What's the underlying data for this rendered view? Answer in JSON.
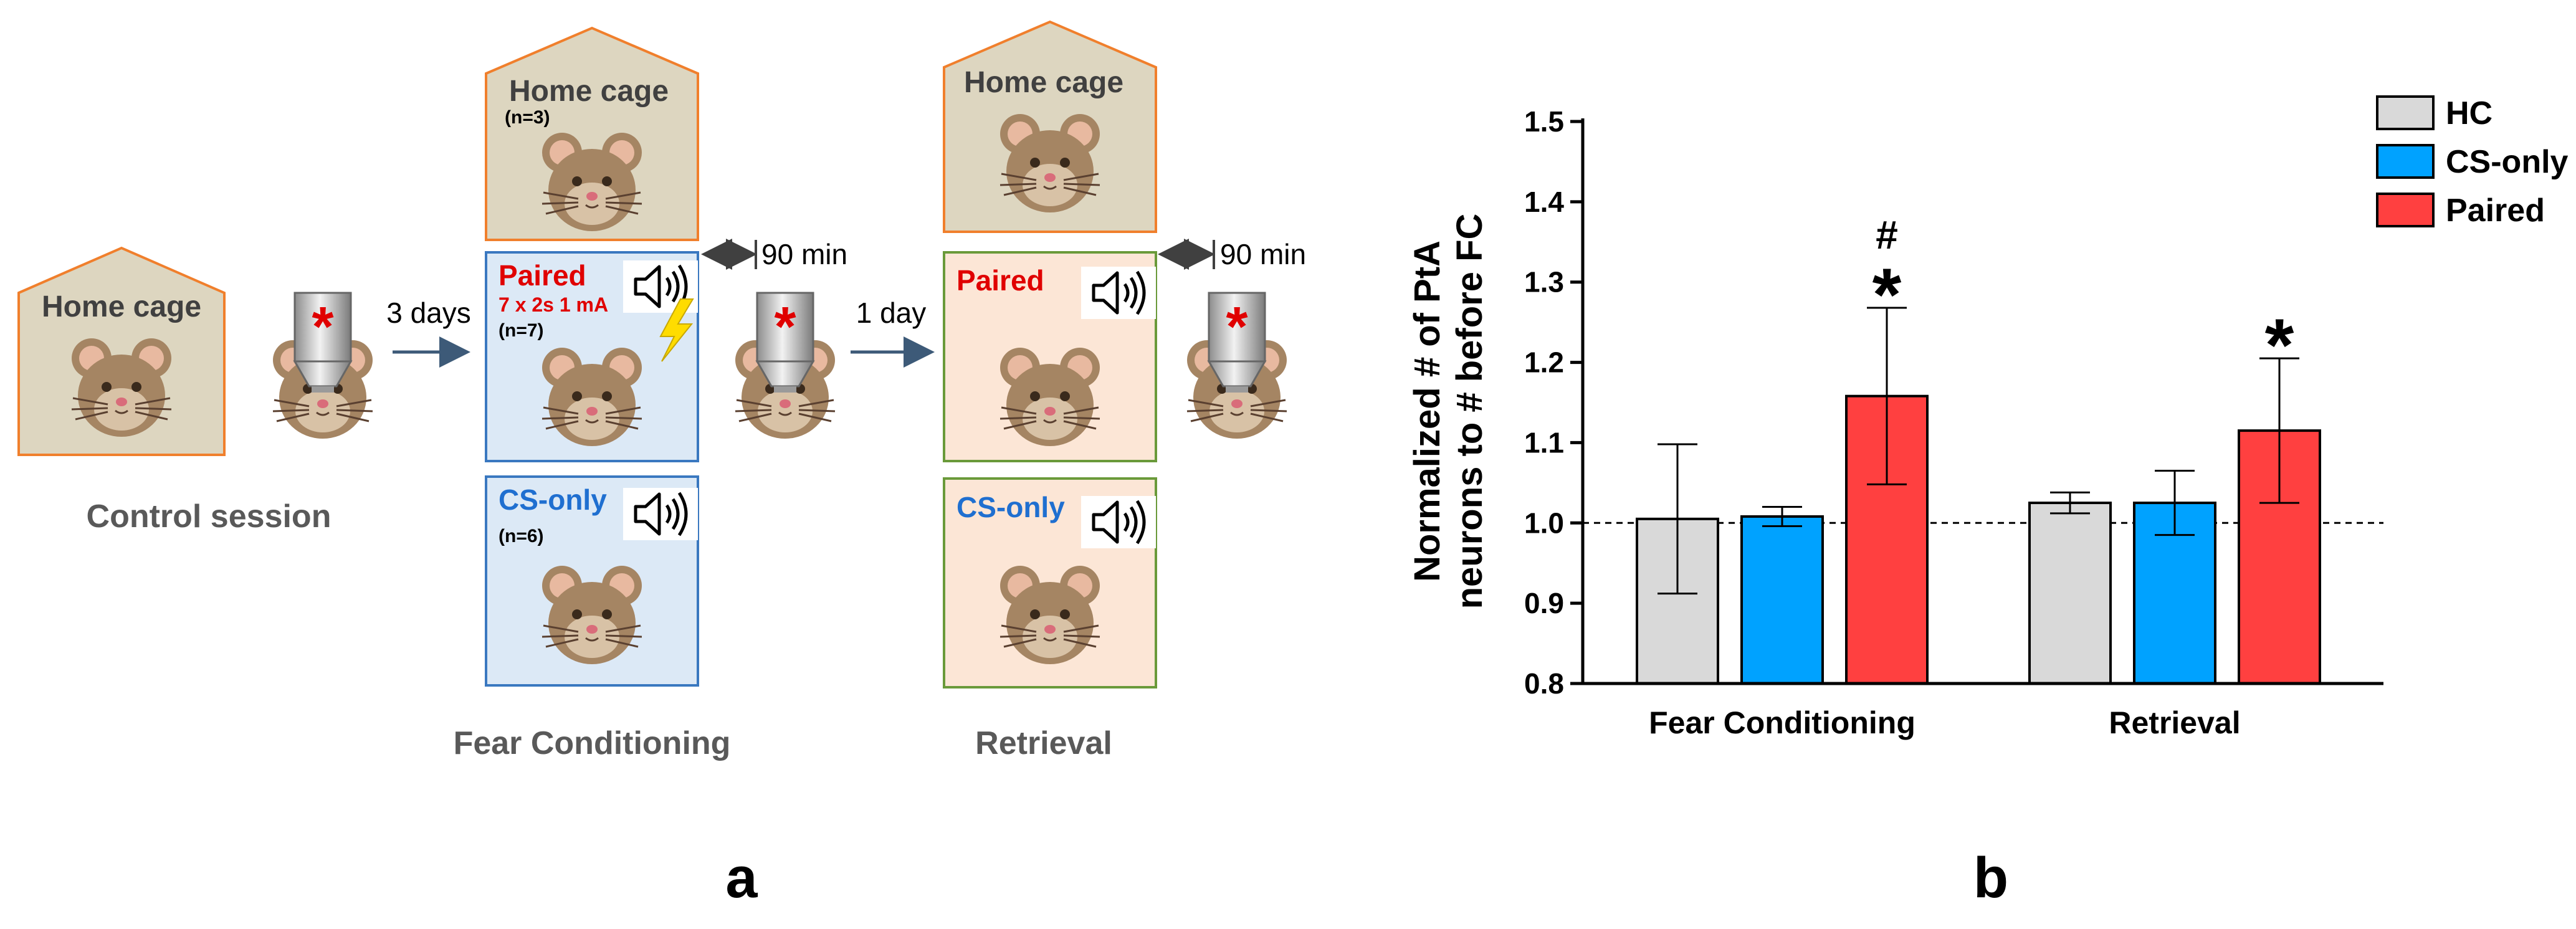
{
  "panel_a": {
    "label": "a",
    "control": {
      "house_title": "Home cage",
      "session_label": "Control session"
    },
    "arrow_3days": "3 days",
    "arrow_1day": "1 day",
    "interval_1": "90 min",
    "interval_2": "90 min",
    "fc": {
      "home_title": "Home cage",
      "home_n": "(n=3)",
      "paired_title": "Paired",
      "paired_sub": "7 x 2s 1 mA",
      "paired_n": "(n=7)",
      "csonly_title": "CS-only",
      "csonly_n": "(n=6)",
      "label": "Fear Conditioning"
    },
    "ret": {
      "home_title": "Home cage",
      "paired_title": "Paired",
      "csonly_title": "CS-only",
      "label": "Retrieval"
    },
    "colors": {
      "house_fill": "#ddd6c0",
      "house_stroke": "#f07f2c",
      "fc_box_fill": "#dce9f6",
      "fc_box_stroke": "#3a78c0",
      "ret_box_fill": "#fce6d6",
      "ret_box_stroke": "#6a9a3a",
      "mouse_fur": "#a58563",
      "asterisk": "#e00000"
    },
    "icons": [
      "mouse-icon",
      "microscope-icon",
      "speaker-icon",
      "lightning-icon"
    ]
  },
  "panel_b": {
    "label": "b",
    "chart_data": {
      "type": "bar",
      "categories": [
        "Fear Conditioning",
        "Retrieval"
      ],
      "series": [
        {
          "name": "HC",
          "color": "#d9d9d9",
          "values": [
            1.005,
            1.025
          ],
          "errors": [
            0.093,
            0.013
          ]
        },
        {
          "name": "CS-only",
          "color": "#00a2ff",
          "values": [
            1.008,
            1.025
          ],
          "errors": [
            0.012,
            0.04
          ]
        },
        {
          "name": "Paired",
          "color": "#ff4040",
          "values": [
            1.158,
            1.115
          ],
          "errors": [
            0.11,
            0.09
          ]
        }
      ],
      "ylabel_line1": "Normalized # of PtA",
      "ylabel_line2": "neurons to # before FC",
      "ylim": [
        0.8,
        1.5
      ],
      "yticks": [
        "0.8",
        "0.9",
        "1.0",
        "1.1",
        "1.2",
        "1.3",
        "1.4",
        "1.5"
      ],
      "reference_line": 1.0,
      "significance": [
        {
          "category": "Fear Conditioning",
          "series": "Paired",
          "marks": [
            "#",
            "*"
          ]
        },
        {
          "category": "Retrieval",
          "series": "Paired",
          "marks": [
            "*"
          ]
        }
      ],
      "legend_position": "top-right"
    }
  }
}
